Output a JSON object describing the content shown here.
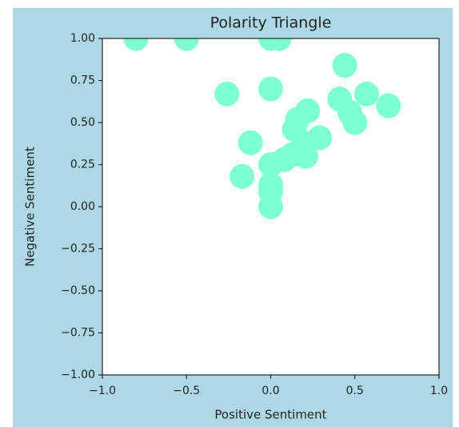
{
  "chart_data": {
    "type": "scatter",
    "title": "Polarity Triangle",
    "x_label": "Positive Sentiment",
    "y_label": "Negative Sentiment",
    "series": [
      {
        "name": "points",
        "color": "#7fffd4",
        "x": [
          -0.8,
          -0.5,
          0.0,
          0.05,
          0.44,
          -0.26,
          0.0,
          0.41,
          0.57,
          0.7,
          0.47,
          0.5,
          0.22,
          0.16,
          0.14,
          -0.12,
          0.29,
          0.2,
          0.13,
          0.21,
          0.08,
          0.0,
          -0.17,
          0.0,
          0.0,
          0.0
        ],
        "values": [
          1.0,
          1.0,
          1.0,
          1.0,
          0.84,
          0.67,
          0.7,
          0.64,
          0.67,
          0.6,
          0.56,
          0.5,
          0.57,
          0.52,
          0.46,
          0.38,
          0.41,
          0.38,
          0.31,
          0.3,
          0.28,
          0.25,
          0.18,
          0.13,
          0.09,
          0.0
        ]
      }
    ],
    "xlim": [
      -1.0,
      1.0
    ],
    "xticks": [
      {
        "value": -1.0,
        "label": "−1.0"
      },
      {
        "value": -0.5,
        "label": "−0.5"
      },
      {
        "value": 0.0,
        "label": "0.0"
      },
      {
        "value": 0.5,
        "label": "0.5"
      },
      {
        "value": 1.0,
        "label": "1.0"
      }
    ],
    "ylim": [
      -1.0,
      1.0
    ],
    "yticks": [
      {
        "value": -1.0,
        "label": "−1.00"
      },
      {
        "value": -0.75,
        "label": "−0.75"
      },
      {
        "value": -0.5,
        "label": "−0.50"
      },
      {
        "value": -0.25,
        "label": "−0.25"
      },
      {
        "value": 0.0,
        "label": "0.00"
      },
      {
        "value": 0.25,
        "label": "0.25"
      },
      {
        "value": 0.5,
        "label": "0.50"
      },
      {
        "value": 0.75,
        "label": "0.75"
      },
      {
        "value": 1.0,
        "label": "1.00"
      }
    ]
  }
}
